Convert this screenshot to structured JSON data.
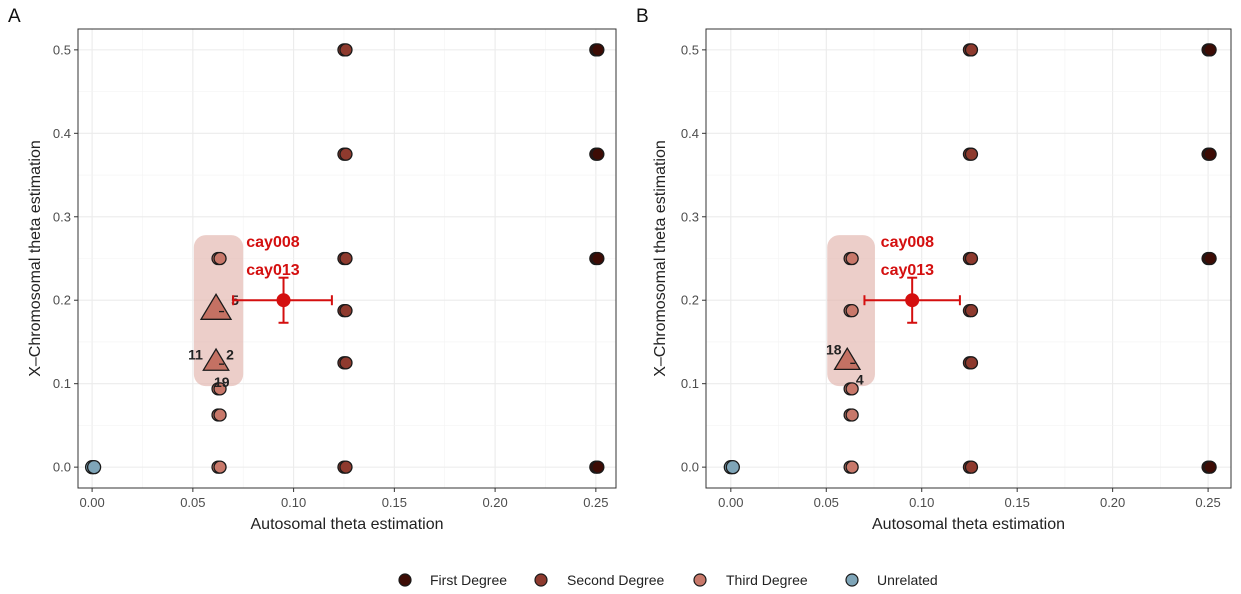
{
  "colors": {
    "first_degree": "#3d0c05",
    "second_degree": "#8e3a2e",
    "third_degree": "#c8786a",
    "unrelated": "#7fa5b8",
    "annotation": "#d40f0f",
    "highlight": "#e2b4ac",
    "grid": "#ebebeb",
    "panel_border": "#333333"
  },
  "legend": {
    "first": "First Degree",
    "second": "Second Degree",
    "third": "Third Degree",
    "unrelated": "Unrelated"
  },
  "chart_data": [
    {
      "type": "scatter",
      "panel_label": "A",
      "xlabel": "Autosomal theta estimation",
      "ylabel": "X–Chromosomal theta estimation",
      "xlim": [
        -0.007,
        0.26
      ],
      "ylim": [
        -0.025,
        0.525
      ],
      "xticks": [
        0,
        0.05,
        0.1,
        0.15,
        0.2,
        0.25
      ],
      "xtick_labels": [
        "0.00",
        "0.05",
        "0.10",
        "0.15",
        "0.20",
        "0.25"
      ],
      "yticks": [
        0,
        0.1,
        0.2,
        0.3,
        0.4,
        0.5
      ],
      "ytick_labels": [
        "0.0",
        "0.1",
        "0.2",
        "0.3",
        "0.4",
        "0.5"
      ],
      "grid": true,
      "legend_position": "bottom",
      "series": [
        {
          "key": "first",
          "points": [
            [
              0.25,
              0.5
            ],
            [
              0.25,
              0.375
            ],
            [
              0.25,
              0.25
            ],
            [
              0.25,
              0.0
            ]
          ]
        },
        {
          "key": "second",
          "points": [
            [
              0.125,
              0.5
            ],
            [
              0.125,
              0.375
            ],
            [
              0.125,
              0.25
            ],
            [
              0.125,
              0.1875
            ],
            [
              0.125,
              0.125
            ],
            [
              0.125,
              0.0
            ]
          ]
        },
        {
          "key": "third",
          "points": [
            [
              0.0625,
              0.25
            ],
            [
              0.0625,
              0.0938
            ],
            [
              0.0625,
              0.0625
            ],
            [
              0.0625,
              0.0
            ]
          ]
        },
        {
          "key": "unrelated",
          "points": [
            [
              0.0,
              0.0
            ]
          ]
        }
      ],
      "triangles": [
        {
          "x": 0.0615,
          "y": 0.19,
          "size": 1.3
        },
        {
          "x": 0.0615,
          "y": 0.127,
          "size": 1.1
        }
      ],
      "triangle_labels": [
        {
          "text": "5",
          "x": 0.069,
          "y": 0.2,
          "anchor": "start"
        },
        {
          "text": "11",
          "x": 0.055,
          "y": 0.135,
          "anchor": "end"
        },
        {
          "text": "2",
          "x": 0.0665,
          "y": 0.135,
          "anchor": "start"
        },
        {
          "text": "19",
          "x": 0.0605,
          "y": 0.102,
          "anchor": "start"
        }
      ],
      "highlight_region": {
        "x0": 0.0505,
        "x1": 0.075,
        "y0": 0.097,
        "y1": 0.278
      },
      "estimate": {
        "x": 0.095,
        "y": 0.2,
        "xerr": [
          0.07,
          0.119
        ],
        "yerr": [
          0.173,
          0.227
        ]
      },
      "annotations": [
        {
          "text": "cay008",
          "x": 0.0765,
          "y": 0.27
        },
        {
          "text": "cay013",
          "x": 0.0765,
          "y": 0.236
        }
      ]
    },
    {
      "type": "scatter",
      "panel_label": "B",
      "xlabel": "Autosomal theta estimation",
      "ylabel": "X–Chromosomal theta estimation",
      "xlim": [
        -0.013,
        0.262
      ],
      "ylim": [
        -0.025,
        0.525
      ],
      "xticks": [
        0,
        0.05,
        0.1,
        0.15,
        0.2,
        0.25
      ],
      "xtick_labels": [
        "0.00",
        "0.05",
        "0.10",
        "0.15",
        "0.20",
        "0.25"
      ],
      "yticks": [
        0,
        0.1,
        0.2,
        0.3,
        0.4,
        0.5
      ],
      "ytick_labels": [
        "0.0",
        "0.1",
        "0.2",
        "0.3",
        "0.4",
        "0.5"
      ],
      "grid": true,
      "legend_position": "bottom",
      "series": [
        {
          "key": "first",
          "points": [
            [
              0.25,
              0.5
            ],
            [
              0.25,
              0.375
            ],
            [
              0.25,
              0.25
            ],
            [
              0.25,
              0.0
            ]
          ]
        },
        {
          "key": "second",
          "points": [
            [
              0.125,
              0.5
            ],
            [
              0.125,
              0.375
            ],
            [
              0.125,
              0.25
            ],
            [
              0.125,
              0.1875
            ],
            [
              0.125,
              0.125
            ],
            [
              0.125,
              0.0
            ]
          ]
        },
        {
          "key": "third",
          "points": [
            [
              0.0625,
              0.25
            ],
            [
              0.0625,
              0.1875
            ],
            [
              0.0625,
              0.0938
            ],
            [
              0.0625,
              0.0625
            ],
            [
              0.0625,
              0.0
            ]
          ]
        },
        {
          "key": "unrelated",
          "points": [
            [
              0.0,
              0.0
            ]
          ]
        }
      ],
      "triangles": [
        {
          "x": 0.061,
          "y": 0.128,
          "size": 1.1
        }
      ],
      "triangle_labels": [
        {
          "text": "18",
          "x": 0.058,
          "y": 0.141,
          "anchor": "end"
        },
        {
          "text": "4",
          "x": 0.0655,
          "y": 0.105,
          "anchor": "start"
        }
      ],
      "highlight_region": {
        "x0": 0.0505,
        "x1": 0.0755,
        "y0": 0.097,
        "y1": 0.278
      },
      "estimate": {
        "x": 0.095,
        "y": 0.2,
        "xerr": [
          0.07,
          0.12
        ],
        "yerr": [
          0.173,
          0.227
        ]
      },
      "annotations": [
        {
          "text": "cay008",
          "x": 0.0785,
          "y": 0.27
        },
        {
          "text": "cay013",
          "x": 0.0785,
          "y": 0.236
        }
      ]
    }
  ]
}
